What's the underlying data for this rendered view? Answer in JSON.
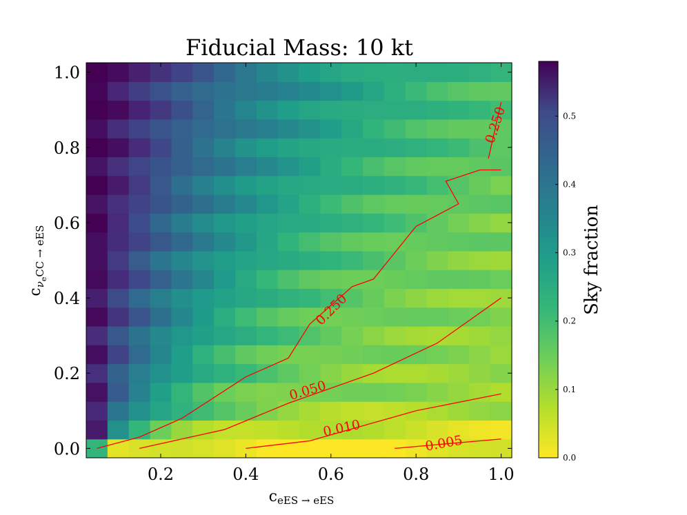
{
  "chart_data": {
    "type": "heatmap",
    "title": "Fiducial Mass: 10 kt",
    "xlabel": {
      "base": "c",
      "sub": "eES → eES"
    },
    "ylabel": {
      "base": "c",
      "sub_parts": [
        "ν",
        "e",
        "CC → eES"
      ]
    },
    "x_ticks": [
      "0.2",
      "0.4",
      "0.6",
      "0.8",
      "1.0"
    ],
    "y_ticks": [
      "0.0",
      "0.2",
      "0.4",
      "0.6",
      "0.8",
      "1.0"
    ],
    "xlim": [
      0.025,
      1.025
    ],
    "ylim": [
      -0.025,
      1.025
    ],
    "colorbar": {
      "label": "Sky fraction",
      "range": [
        0.0,
        0.58
      ],
      "ticks": [
        "0.0",
        "0.1",
        "0.2",
        "0.3",
        "0.4",
        "0.5"
      ],
      "colormap": "viridis_r"
    },
    "grid": {
      "x_start": 0.05,
      "y_start": 0.0,
      "step": 0.05,
      "nx": 20,
      "ny": 21
    },
    "contour_color": "#ff0000",
    "contours": [
      {
        "level_label": "0.005",
        "points": [
          [
            0.75,
            0.0
          ],
          [
            1.0,
            0.025
          ]
        ]
      },
      {
        "level_label": "0.010",
        "points": [
          [
            0.4,
            0.0
          ],
          [
            0.55,
            0.02
          ],
          [
            0.8,
            0.1
          ],
          [
            1.0,
            0.145
          ]
        ]
      },
      {
        "level_label": "0.050",
        "points": [
          [
            0.15,
            0.0
          ],
          [
            0.35,
            0.05
          ],
          [
            0.5,
            0.12
          ],
          [
            0.7,
            0.2
          ],
          [
            0.85,
            0.28
          ],
          [
            1.0,
            0.4
          ]
        ]
      },
      {
        "level_label": "0.250",
        "points": [
          [
            0.05,
            0.0
          ],
          [
            0.15,
            0.03
          ],
          [
            0.25,
            0.08
          ],
          [
            0.4,
            0.19
          ],
          [
            0.5,
            0.24
          ],
          [
            0.55,
            0.33
          ],
          [
            0.65,
            0.43
          ],
          [
            0.7,
            0.45
          ],
          [
            0.8,
            0.59
          ],
          [
            0.9,
            0.65
          ],
          [
            0.87,
            0.71
          ],
          [
            0.95,
            0.74
          ],
          [
            1.0,
            0.74
          ]
        ]
      },
      {
        "level_label": "0.250",
        "points": [
          [
            0.97,
            0.77
          ],
          [
            1.0,
            0.92
          ]
        ]
      }
    ],
    "label_color": "#ff0000"
  }
}
